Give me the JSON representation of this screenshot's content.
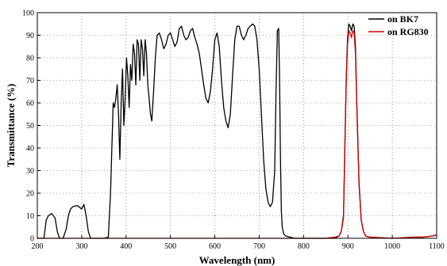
{
  "chart_data": {
    "type": "line",
    "title": "",
    "xlabel": "Wavelength (nm)",
    "ylabel": "Transmittance (%)",
    "xlim": [
      200,
      1100
    ],
    "ylim": [
      0,
      100
    ],
    "xticks": [
      200,
      300,
      400,
      500,
      600,
      700,
      800,
      900,
      1000,
      1100
    ],
    "yticks": [
      0,
      10,
      20,
      30,
      40,
      50,
      60,
      70,
      80,
      90,
      100
    ],
    "grid": true,
    "legend_position": "top-right",
    "series": [
      {
        "name": "on BK7",
        "color": "#000000",
        "x": [
          200,
          215,
          220,
          225,
          232,
          240,
          245,
          250,
          258,
          265,
          270,
          275,
          280,
          290,
          300,
          305,
          310,
          315,
          320,
          330,
          340,
          350,
          360,
          365,
          368,
          371,
          374,
          377,
          380,
          383,
          386,
          389,
          392,
          395,
          398,
          401,
          404,
          407,
          410,
          413,
          416,
          419,
          422,
          425,
          428,
          431,
          434,
          437,
          440,
          443,
          446,
          449,
          452,
          455,
          458,
          462,
          466,
          470,
          475,
          480,
          485,
          490,
          495,
          500,
          505,
          510,
          515,
          520,
          525,
          530,
          535,
          540,
          545,
          550,
          555,
          560,
          565,
          570,
          575,
          580,
          585,
          590,
          595,
          600,
          605,
          610,
          615,
          620,
          625,
          630,
          635,
          640,
          645,
          650,
          655,
          660,
          665,
          670,
          675,
          680,
          685,
          690,
          695,
          700,
          705,
          710,
          715,
          720,
          725,
          730,
          735,
          738,
          741,
          744,
          746,
          748,
          750,
          752,
          755,
          760,
          770,
          780,
          800,
          850,
          870,
          880,
          885,
          890,
          893,
          896,
          899,
          902,
          905,
          908,
          911,
          914,
          917,
          920,
          925,
          930,
          935,
          940,
          950,
          1000,
          1050,
          1070,
          1090,
          1100
        ],
        "y": [
          0,
          0,
          8,
          10,
          11,
          9,
          3,
          0,
          0,
          4,
          10,
          13,
          14,
          14.5,
          13,
          15,
          10,
          3,
          0,
          0,
          0,
          0,
          0.5,
          20,
          40,
          60,
          58,
          62,
          68,
          55,
          35,
          60,
          75,
          50,
          62,
          80,
          72,
          58,
          77,
          70,
          86,
          82,
          68,
          88,
          86,
          70,
          88,
          84,
          72,
          88,
          82,
          68,
          62,
          55,
          52,
          65,
          80,
          90,
          91,
          88,
          84,
          86,
          90,
          91,
          88,
          85,
          87,
          93,
          94,
          90,
          88,
          89,
          92,
          93,
          89,
          86,
          82,
          75,
          68,
          62,
          60,
          65,
          75,
          88,
          91,
          85,
          70,
          58,
          52,
          49,
          55,
          72,
          88,
          94,
          94,
          90,
          88,
          90,
          93,
          94,
          95,
          94,
          88,
          75,
          55,
          35,
          22,
          16,
          14,
          16,
          30,
          65,
          92,
          93,
          70,
          35,
          12,
          5,
          2,
          1,
          0.5,
          0,
          0,
          0,
          0,
          1,
          3,
          10,
          40,
          70,
          88,
          95,
          94,
          92,
          95,
          94,
          85,
          60,
          25,
          8,
          3,
          1,
          0.5,
          0,
          0.5,
          0.5,
          1,
          1.5
        ]
      },
      {
        "name": "on RG830",
        "color": "#cc0000",
        "x": [
          200,
          300,
          400,
          500,
          600,
          700,
          800,
          850,
          870,
          880,
          885,
          890,
          893,
          896,
          899,
          902,
          905,
          908,
          911,
          914,
          917,
          920,
          925,
          930,
          935,
          940,
          950,
          1000,
          1050,
          1070,
          1090,
          1100
        ],
        "y": [
          0,
          0,
          0,
          0,
          0,
          0,
          0,
          0,
          0.5,
          1,
          3,
          9,
          38,
          68,
          86,
          92,
          91,
          89,
          92,
          91,
          82,
          58,
          24,
          8,
          3,
          1,
          0.5,
          0,
          0.5,
          0.5,
          1,
          1.5
        ]
      }
    ]
  }
}
